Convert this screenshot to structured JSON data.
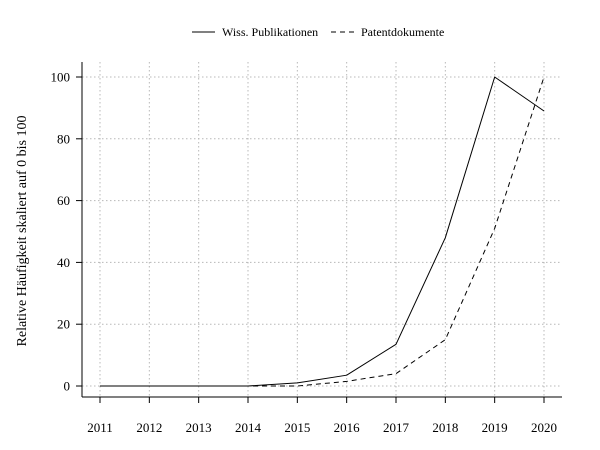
{
  "chart_data": {
    "type": "line",
    "title": "",
    "xlabel": "",
    "ylabel": "Relative Häufigkeit skaliert auf 0 bis 100",
    "categories": [
      "2011",
      "2012",
      "2013",
      "2014",
      "2015",
      "2016",
      "2017",
      "2018",
      "2019",
      "2020"
    ],
    "ylim": [
      0,
      100
    ],
    "yticks": [
      0,
      20,
      40,
      60,
      80,
      100
    ],
    "grid": true,
    "legend_position": "top-center",
    "series": [
      {
        "name": "Wiss. Publikationen",
        "line_style": "solid",
        "values": [
          0,
          0,
          0,
          0,
          1,
          3.5,
          13.5,
          48,
          100,
          89
        ]
      },
      {
        "name": "Patentdokumente",
        "line_style": "dashed",
        "values": [
          0,
          0,
          0,
          0,
          0,
          1.5,
          4,
          15,
          51,
          100
        ]
      }
    ],
    "colors": {
      "line": "#000000",
      "grid": "#b8b8b8"
    }
  }
}
